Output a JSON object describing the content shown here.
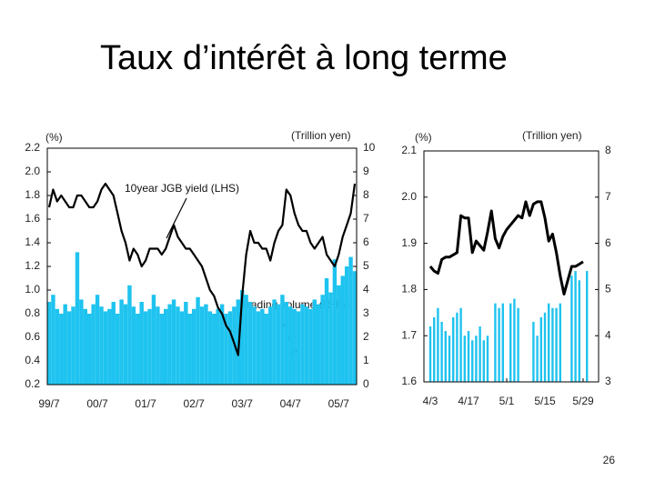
{
  "title": "Taux d’intérêt à long terme",
  "page_number": "26",
  "chart_data": [
    {
      "type": "combo",
      "ylabel": "(%)",
      "y2label": "(Trillion yen)",
      "categories": [
        "99/7",
        null,
        null,
        null,
        null,
        null,
        null,
        null,
        null,
        null,
        null,
        null,
        "00/7",
        null,
        null,
        null,
        null,
        null,
        null,
        null,
        null,
        null,
        null,
        null,
        "01/7",
        null,
        null,
        null,
        null,
        null,
        null,
        null,
        null,
        null,
        null,
        null,
        "02/7",
        null,
        null,
        null,
        null,
        null,
        null,
        null,
        null,
        null,
        null,
        null,
        "03/7",
        null,
        null,
        null,
        null,
        null,
        null,
        null,
        null,
        null,
        null,
        null,
        "04/7",
        null,
        null,
        null,
        null,
        null,
        null,
        null,
        null,
        null,
        null,
        null,
        "05/7",
        null,
        null,
        null,
        null
      ],
      "ylim": [
        0.2,
        2.2
      ],
      "yticks": [
        0.2,
        0.4,
        0.6,
        0.8,
        {
          "value": 1,
          "label": "1.0"
        },
        1.2,
        1.4,
        1.6,
        1.8,
        {
          "value": 2,
          "label": "2.0"
        },
        2.2
      ],
      "y2lim": [
        0,
        10
      ],
      "y2ticks": [
        0,
        1,
        2,
        3,
        4,
        5,
        6,
        7,
        8,
        9,
        10
      ],
      "series": [
        {
          "name": "Trading volume (RHS)",
          "type": "bar",
          "axis": "y2",
          "color": "#1fc3ef",
          "values": [
            3.5,
            3.8,
            3.2,
            3.0,
            3.4,
            3.1,
            3.3,
            5.6,
            3.6,
            3.2,
            3.0,
            3.4,
            3.8,
            3.3,
            3.1,
            3.2,
            3.5,
            3.0,
            3.6,
            3.4,
            4.2,
            3.3,
            3.0,
            3.5,
            3.1,
            3.2,
            3.8,
            3.3,
            3.0,
            3.2,
            3.4,
            3.6,
            3.3,
            3.1,
            3.5,
            3.0,
            3.2,
            3.7,
            3.3,
            3.4,
            3.1,
            3.0,
            3.2,
            3.4,
            3.0,
            3.1,
            3.3,
            3.6,
            4.0,
            3.8,
            3.5,
            3.3,
            3.1,
            3.2,
            3.0,
            3.3,
            3.6,
            3.4,
            3.8,
            3.5,
            3.3,
            3.2,
            3.1,
            3.4,
            3.3,
            3.2,
            3.6,
            3.4,
            3.8,
            4.5,
            3.9,
            5.3,
            4.2,
            4.6,
            5.0,
            5.4,
            4.8
          ]
        },
        {
          "name": "10year JGB yield (LHS)",
          "type": "line",
          "color": "#000000",
          "values": [
            1.7,
            1.85,
            1.75,
            1.8,
            1.75,
            1.7,
            1.7,
            1.8,
            1.8,
            1.75,
            1.7,
            1.7,
            1.75,
            1.85,
            1.9,
            1.85,
            1.8,
            1.65,
            1.5,
            1.4,
            1.25,
            1.35,
            1.3,
            1.2,
            1.25,
            1.35,
            1.35,
            1.35,
            1.3,
            1.35,
            1.45,
            1.55,
            1.45,
            1.4,
            1.35,
            1.35,
            1.3,
            1.25,
            1.2,
            1.1,
            1.0,
            0.95,
            0.85,
            0.8,
            0.7,
            0.65,
            0.55,
            0.45,
            0.95,
            1.3,
            1.5,
            1.4,
            1.4,
            1.35,
            1.35,
            1.25,
            1.4,
            1.5,
            1.55,
            1.85,
            1.8,
            1.65,
            1.55,
            1.5,
            1.5,
            1.4,
            1.35,
            1.4,
            1.45,
            1.3,
            1.25,
            1.2,
            1.3,
            1.45,
            1.55,
            1.65,
            1.9
          ]
        }
      ]
    },
    {
      "type": "combo",
      "ylabel": "(%)",
      "y2label": "(Trillion yen)",
      "categories": [
        "4/3",
        null,
        null,
        null,
        null,
        null,
        null,
        null,
        null,
        null,
        "4/17",
        null,
        null,
        null,
        null,
        null,
        null,
        null,
        null,
        null,
        "5/1",
        null,
        null,
        null,
        null,
        null,
        null,
        null,
        null,
        null,
        "5/15",
        null,
        null,
        null,
        null,
        null,
        null,
        null,
        null,
        null,
        "5/29",
        null,
        null
      ],
      "ylim": [
        1.6,
        2.1
      ],
      "yticks": [
        1.6,
        1.7,
        1.8,
        1.9,
        {
          "value": 2,
          "label": "2.0"
        },
        2.1
      ],
      "y2lim": [
        3,
        8
      ],
      "y2ticks": [
        3,
        4,
        5,
        6,
        7,
        8
      ],
      "series": [
        {
          "type": "bar",
          "axis": "y2",
          "color": "#1fc3ef",
          "values": [
            4.2,
            4.4,
            4.6,
            4.3,
            4.1,
            4.0,
            4.4,
            4.5,
            4.6,
            4.0,
            4.1,
            3.9,
            4.0,
            4.2,
            3.9,
            4.0,
            null,
            4.7,
            4.6,
            4.7,
            null,
            4.7,
            4.8,
            4.6,
            null,
            null,
            null,
            4.3,
            4.0,
            4.4,
            4.5,
            4.7,
            4.6,
            4.6,
            4.7,
            null,
            null,
            5.3,
            5.4,
            5.2,
            null,
            5.4,
            null
          ]
        },
        {
          "type": "line",
          "color": "#000000",
          "values": [
            1.85,
            1.84,
            1.835,
            1.865,
            1.87,
            1.87,
            1.875,
            1.88,
            1.96,
            1.955,
            1.955,
            1.88,
            1.905,
            1.895,
            1.885,
            1.925,
            1.97,
            1.91,
            1.89,
            1.915,
            1.93,
            1.94,
            1.95,
            1.96,
            1.955,
            1.99,
            1.96,
            1.985,
            1.99,
            1.99,
            1.955,
            1.905,
            1.92,
            1.88,
            1.83,
            1.79,
            1.82,
            1.85,
            1.85,
            1.855,
            1.86,
            null,
            null
          ]
        }
      ]
    }
  ]
}
